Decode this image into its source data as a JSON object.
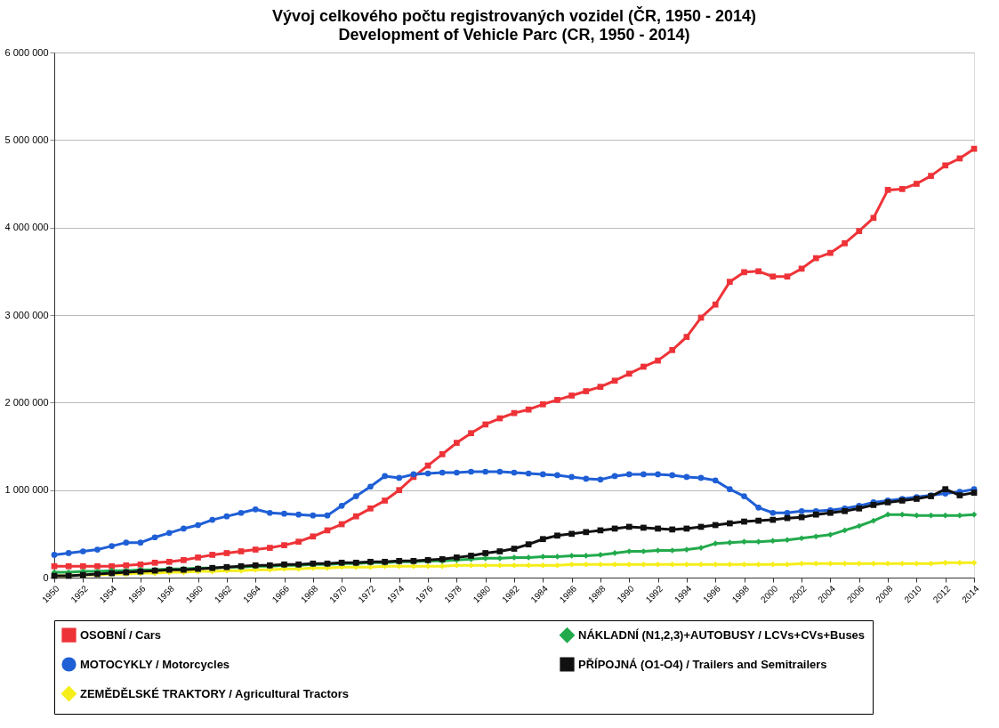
{
  "chart_data": {
    "type": "line",
    "title": "Vývoj celkového počtu registrovaných vozidel (ČR, 1950 - 2014)",
    "subtitle": "Development of  Vehicle Parc (CR, 1950 - 2014)",
    "x": [
      1950,
      1951,
      1952,
      1953,
      1954,
      1955,
      1956,
      1957,
      1958,
      1959,
      1960,
      1961,
      1962,
      1963,
      1964,
      1965,
      1966,
      1967,
      1968,
      1969,
      1970,
      1971,
      1972,
      1973,
      1974,
      1975,
      1976,
      1977,
      1978,
      1979,
      1980,
      1981,
      1982,
      1983,
      1984,
      1985,
      1986,
      1987,
      1988,
      1989,
      1990,
      1991,
      1992,
      1993,
      1994,
      1995,
      1996,
      1997,
      1998,
      1999,
      2000,
      2001,
      2002,
      2003,
      2004,
      2005,
      2006,
      2007,
      2008,
      2009,
      2010,
      2011,
      2012,
      2013,
      2014
    ],
    "series": [
      {
        "name": "OSOBNÍ / Cars",
        "color": "#ee3338",
        "marker": "square",
        "values": [
          130000,
          130000,
          130000,
          130000,
          130000,
          140000,
          150000,
          170000,
          180000,
          200000,
          230000,
          260000,
          280000,
          300000,
          320000,
          340000,
          370000,
          410000,
          470000,
          540000,
          610000,
          700000,
          790000,
          880000,
          1000000,
          1150000,
          1280000,
          1410000,
          1540000,
          1650000,
          1750000,
          1820000,
          1880000,
          1920000,
          1980000,
          2030000,
          2080000,
          2130000,
          2180000,
          2250000,
          2330000,
          2410000,
          2480000,
          2600000,
          2750000,
          2970000,
          3120000,
          3380000,
          3490000,
          3500000,
          3440000,
          3440000,
          3530000,
          3650000,
          3710000,
          3820000,
          3960000,
          4110000,
          4430000,
          4440000,
          4500000,
          4590000,
          4710000,
          4790000,
          4900000
        ]
      },
      {
        "name": "MOTOCYKLY / Motorcycles",
        "color": "#1f5fd6",
        "marker": "circle",
        "values": [
          260000,
          280000,
          300000,
          320000,
          360000,
          400000,
          400000,
          460000,
          510000,
          560000,
          600000,
          660000,
          700000,
          740000,
          780000,
          740000,
          730000,
          720000,
          710000,
          710000,
          820000,
          930000,
          1040000,
          1160000,
          1140000,
          1180000,
          1190000,
          1200000,
          1200000,
          1210000,
          1210000,
          1210000,
          1200000,
          1190000,
          1180000,
          1170000,
          1150000,
          1130000,
          1120000,
          1160000,
          1180000,
          1180000,
          1180000,
          1170000,
          1150000,
          1140000,
          1110000,
          1010000,
          930000,
          800000,
          740000,
          740000,
          760000,
          760000,
          770000,
          790000,
          820000,
          860000,
          880000,
          900000,
          920000,
          940000,
          960000,
          980000,
          1010000
        ]
      },
      {
        "name": "ZEMĚDĚLSKÉ TRAKTORY / Agricultural Tractors",
        "color": "#f5ee1a",
        "marker": "diamond",
        "values": [
          20000,
          20000,
          30000,
          30000,
          40000,
          40000,
          50000,
          50000,
          60000,
          60000,
          70000,
          70000,
          80000,
          80000,
          90000,
          90000,
          100000,
          100000,
          110000,
          110000,
          120000,
          120000,
          120000,
          130000,
          130000,
          130000,
          130000,
          130000,
          140000,
          140000,
          140000,
          140000,
          140000,
          140000,
          140000,
          140000,
          150000,
          150000,
          150000,
          150000,
          150000,
          150000,
          150000,
          150000,
          150000,
          150000,
          150000,
          150000,
          150000,
          150000,
          150000,
          150000,
          160000,
          160000,
          160000,
          160000,
          160000,
          160000,
          160000,
          160000,
          160000,
          160000,
          170000,
          170000,
          170000
        ]
      },
      {
        "name": "NÁKLADNÍ (N1,2,3)+AUTOBUSY / LCVs+CVs+Buses",
        "color": "#22aa4c",
        "marker": "diamond",
        "values": [
          60000,
          60000,
          70000,
          70000,
          80000,
          80000,
          90000,
          90000,
          100000,
          100000,
          110000,
          110000,
          120000,
          120000,
          130000,
          130000,
          140000,
          140000,
          150000,
          150000,
          160000,
          160000,
          170000,
          170000,
          180000,
          180000,
          190000,
          190000,
          200000,
          210000,
          220000,
          220000,
          230000,
          230000,
          240000,
          240000,
          250000,
          250000,
          260000,
          280000,
          300000,
          300000,
          310000,
          310000,
          320000,
          340000,
          390000,
          400000,
          410000,
          410000,
          420000,
          430000,
          450000,
          470000,
          490000,
          540000,
          590000,
          650000,
          720000,
          720000,
          710000,
          710000,
          710000,
          710000,
          720000
        ]
      },
      {
        "name": "PŘÍPOJNÁ (O1-O4) / Trailers and Semitrailers",
        "color": "#111111",
        "marker": "square",
        "values": [
          20000,
          20000,
          30000,
          40000,
          50000,
          60000,
          70000,
          80000,
          90000,
          90000,
          100000,
          110000,
          120000,
          130000,
          140000,
          140000,
          150000,
          150000,
          160000,
          160000,
          170000,
          170000,
          180000,
          180000,
          190000,
          190000,
          200000,
          210000,
          230000,
          250000,
          280000,
          300000,
          330000,
          380000,
          440000,
          480000,
          500000,
          520000,
          540000,
          560000,
          580000,
          570000,
          560000,
          550000,
          560000,
          580000,
          600000,
          620000,
          640000,
          650000,
          660000,
          680000,
          690000,
          720000,
          740000,
          760000,
          790000,
          830000,
          860000,
          880000,
          900000,
          930000,
          1010000,
          940000,
          970000
        ]
      }
    ],
    "xlim": [
      1950,
      2014
    ],
    "xticks": [
      1950,
      1952,
      1954,
      1956,
      1958,
      1960,
      1962,
      1964,
      1966,
      1968,
      1970,
      1972,
      1974,
      1976,
      1978,
      1980,
      1982,
      1984,
      1986,
      1988,
      1990,
      1992,
      1994,
      1996,
      1998,
      2000,
      2002,
      2004,
      2006,
      2008,
      2010,
      2012,
      2014
    ],
    "ylim": [
      0,
      6000000
    ],
    "yticks": [
      {
        "value": 0,
        "label": "0"
      },
      {
        "value": 1000000,
        "label": "1 000 000"
      },
      {
        "value": 2000000,
        "label": "2 000 000"
      },
      {
        "value": 3000000,
        "label": "3 000 000"
      },
      {
        "value": 4000000,
        "label": "4 000 000"
      },
      {
        "value": 5000000,
        "label": "5 000 000"
      },
      {
        "value": 6000000,
        "label": "6 000 000"
      }
    ],
    "grid": "y",
    "legend": "bottom",
    "line_style": "solid"
  }
}
